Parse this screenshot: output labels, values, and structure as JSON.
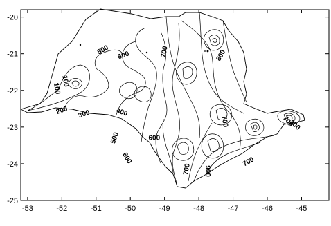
{
  "chart_data": {
    "type": "contour",
    "title": "",
    "xlabel": "",
    "ylabel": "",
    "xlim": [
      -53.2,
      -44.2
    ],
    "ylim": [
      -25,
      -19.8
    ],
    "x_ticks": [
      {
        "value": -53,
        "label": "-53"
      },
      {
        "value": -52,
        "label": "-52"
      },
      {
        "value": -51,
        "label": "-51"
      },
      {
        "value": -50,
        "label": "-50"
      },
      {
        "value": -49,
        "label": "-49"
      },
      {
        "value": -48,
        "label": "-48"
      },
      {
        "value": -47,
        "label": "-47"
      },
      {
        "value": -46,
        "label": "-46"
      },
      {
        "value": -45,
        "label": "-45"
      }
    ],
    "y_ticks": [
      {
        "value": -20,
        "label": "-20"
      },
      {
        "value": -21,
        "label": "-21"
      },
      {
        "value": -22,
        "label": "-22"
      },
      {
        "value": -23,
        "label": "-23"
      },
      {
        "value": -24,
        "label": "-24"
      },
      {
        "value": -25,
        "label": "-25"
      }
    ],
    "contour_levels": [
      100,
      200,
      300,
      400,
      500,
      600,
      700,
      800,
      900
    ],
    "contour_labels": [
      {
        "text": "100",
        "x": -51.9,
        "y": -21.75,
        "rotate": 80
      },
      {
        "text": "100",
        "x": -52.15,
        "y": -21.95,
        "rotate": 80
      },
      {
        "text": "200",
        "x": -52.0,
        "y": -22.55,
        "rotate": -20
      },
      {
        "text": "300",
        "x": -51.35,
        "y": -22.65,
        "rotate": -20
      },
      {
        "text": "400",
        "x": -50.25,
        "y": -22.6,
        "rotate": 20
      },
      {
        "text": "500",
        "x": -50.8,
        "y": -20.9,
        "rotate": -30
      },
      {
        "text": "600",
        "x": -50.2,
        "y": -21.05,
        "rotate": -20
      },
      {
        "text": "700",
        "x": -49.0,
        "y": -20.95,
        "rotate": -80
      },
      {
        "text": "800",
        "x": -47.35,
        "y": -21.05,
        "rotate": -60
      },
      {
        "text": "500",
        "x": -50.45,
        "y": -23.3,
        "rotate": -70
      },
      {
        "text": "600",
        "x": -49.3,
        "y": -23.3,
        "rotate": 0
      },
      {
        "text": "600",
        "x": -50.1,
        "y": -23.85,
        "rotate": 60
      },
      {
        "text": "700",
        "x": -48.35,
        "y": -24.15,
        "rotate": -80
      },
      {
        "text": "900",
        "x": -47.75,
        "y": -24.2,
        "rotate": 90
      },
      {
        "text": "700",
        "x": -47.25,
        "y": -22.85,
        "rotate": 80
      },
      {
        "text": "700",
        "x": -46.55,
        "y": -23.95,
        "rotate": -30
      },
      {
        "text": "700",
        "x": -45.4,
        "y": -22.85,
        "rotate": 50
      },
      {
        "text": "800",
        "x": -45.2,
        "y": -22.95,
        "rotate": 40
      }
    ]
  }
}
